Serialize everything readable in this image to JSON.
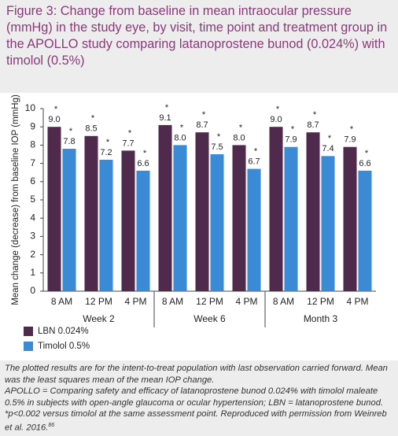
{
  "chart_data": {
    "type": "bar",
    "title": "Figure 3: Change from baseline in mean intraocular pressure (mmHg) in the study eye, by visit, time point and treatment group in the APOLLO study comparing latanoprostene bunod (0.024%) with timolol (0.5%)",
    "y_label": "Mean change (decrease) from baseline IOP (mmHg)",
    "categories": [
      "8 AM",
      "12 PM",
      "4 PM",
      "8 AM",
      "12 PM",
      "4 PM",
      "8 AM",
      "12 PM",
      "4 PM"
    ],
    "groups": [
      "Week 2",
      "Week 6",
      "Month 3"
    ],
    "significance_marker": "*",
    "series": [
      {
        "name": "LBN 0.024%",
        "color": "#4f2a4c",
        "values": [
          9.0,
          8.5,
          7.7,
          9.1,
          8.7,
          8.0,
          9.0,
          8.7,
          7.9
        ],
        "value_labels": [
          "9.0",
          "8.5",
          "7.7",
          "9.1",
          "8.7",
          "8.0",
          "9.0",
          "8.7",
          "7.9"
        ]
      },
      {
        "name": "Timolol 0.5%",
        "color": "#3a8ad6",
        "values": [
          7.8,
          7.2,
          6.6,
          8.0,
          7.5,
          6.7,
          7.9,
          7.4,
          6.6
        ],
        "value_labels": [
          "7.8",
          "7.2",
          "6.6",
          "8.0",
          "7.5",
          "6.7",
          "7.9",
          "7.4",
          "6.6"
        ]
      }
    ],
    "ylim": [
      0,
      10
    ],
    "yticks": [
      0,
      1,
      2,
      3,
      4,
      5,
      6,
      7,
      8,
      9,
      10
    ],
    "grid": false,
    "notes": [
      "The plotted results are for the intent-to-treat population with last observation carried forward. Mean was the least squares mean of the mean IOP change.",
      "APOLLO = Comparing safety and efficacy of latanoprostene bunod 0.024% with timolol maleate 0.5% in subjects with open-angle glaucoma or ocular hypertension; LBN = latanoprostene bunod. *p<0.002 versus timolol at the same assessment point. Reproduced with permission from Weinreb et al. 2016."
    ],
    "reference": "86"
  }
}
